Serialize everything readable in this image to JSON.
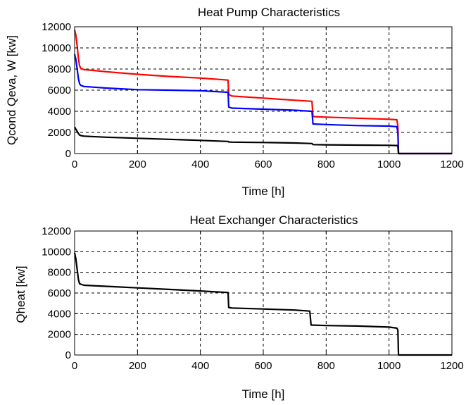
{
  "chart_data": [
    {
      "type": "line",
      "title": "Heat Pump Characteristics",
      "xlabel": "Time [h]",
      "ylabel": "Qcond Qeva, W [kw]",
      "xlim": [
        0,
        1200
      ],
      "ylim": [
        0,
        12000
      ],
      "xticks": [
        "0",
        "200",
        "400",
        "600",
        "800",
        "1000",
        "1200"
      ],
      "yticks": [
        "0",
        "2000",
        "4000",
        "6000",
        "8000",
        "10000",
        "12000"
      ],
      "grid": true,
      "legend": "none",
      "series": [
        {
          "color": "#ff0000",
          "x": [
            0,
            4,
            8,
            12,
            16,
            20,
            30,
            100,
            200,
            300,
            400,
            488,
            490,
            500,
            600,
            700,
            755,
            758,
            800,
            900,
            1000,
            1025,
            1028,
            1030,
            1200
          ],
          "y": [
            11700,
            11200,
            10200,
            9000,
            8300,
            8050,
            7950,
            7750,
            7500,
            7300,
            7150,
            6950,
            5600,
            5450,
            5250,
            5050,
            4950,
            3500,
            3450,
            3350,
            3250,
            3200,
            2600,
            0,
            0
          ]
        },
        {
          "color": "#0000ff",
          "x": [
            0,
            4,
            8,
            12,
            16,
            20,
            30,
            100,
            200,
            300,
            400,
            488,
            490,
            500,
            600,
            700,
            755,
            758,
            800,
            900,
            1000,
            1025,
            1028,
            1030,
            1200
          ],
          "y": [
            9400,
            8900,
            8000,
            7100,
            6600,
            6450,
            6350,
            6200,
            6050,
            6000,
            5950,
            5800,
            4400,
            4300,
            4200,
            4100,
            4000,
            2800,
            2750,
            2650,
            2600,
            2550,
            2000,
            0,
            0
          ]
        },
        {
          "color": "#000000",
          "x": [
            0,
            4,
            8,
            12,
            16,
            20,
            30,
            100,
            200,
            300,
            400,
            488,
            490,
            500,
            600,
            700,
            755,
            758,
            800,
            900,
            1000,
            1025,
            1028,
            1030,
            1200
          ],
          "y": [
            2500,
            2300,
            2100,
            1900,
            1750,
            1700,
            1650,
            1550,
            1450,
            1350,
            1250,
            1150,
            1100,
            1080,
            1050,
            1000,
            950,
            850,
            830,
            800,
            780,
            760,
            700,
            0,
            0
          ]
        }
      ]
    },
    {
      "type": "line",
      "title": "Heat Exchanger Characteristics",
      "xlabel": "Time [h]",
      "ylabel": "Qheat [kw]",
      "xlim": [
        0,
        1200
      ],
      "ylim": [
        0,
        12000
      ],
      "xticks": [
        "0",
        "200",
        "400",
        "600",
        "800",
        "1000",
        "1200"
      ],
      "yticks": [
        "0",
        "2000",
        "4000",
        "6000",
        "8000",
        "10000",
        "12000"
      ],
      "grid": true,
      "legend": "none",
      "series": [
        {
          "color": "#000000",
          "x": [
            0,
            4,
            8,
            12,
            16,
            20,
            30,
            100,
            200,
            300,
            400,
            488,
            490,
            500,
            600,
            700,
            748,
            752,
            800,
            900,
            1000,
            1025,
            1028,
            1030,
            1200
          ],
          "y": [
            9900,
            9300,
            8300,
            7300,
            6900,
            6850,
            6750,
            6650,
            6500,
            6350,
            6200,
            6050,
            4600,
            4550,
            4450,
            4350,
            4250,
            2900,
            2850,
            2800,
            2700,
            2600,
            2400,
            0,
            0
          ]
        }
      ]
    }
  ]
}
